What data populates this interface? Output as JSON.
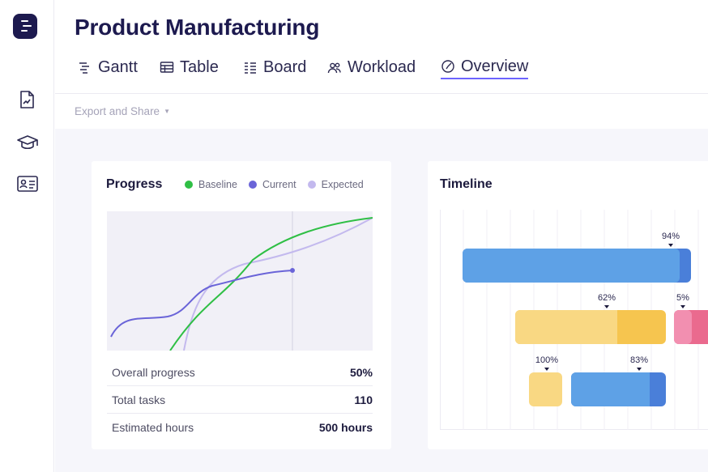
{
  "app": {
    "title": "Product Manufacturing",
    "tabs": [
      {
        "label": "Gantt",
        "icon": "gantt-icon"
      },
      {
        "label": "Table",
        "icon": "table-icon"
      },
      {
        "label": "Board",
        "icon": "board-icon"
      },
      {
        "label": "Workload",
        "icon": "workload-icon"
      },
      {
        "label": "Overview",
        "icon": "overview-icon",
        "active": true
      }
    ]
  },
  "sidebar": {
    "icons": [
      "document-icon",
      "graduation-cap-icon",
      "contact-card-icon"
    ]
  },
  "toolbar": {
    "export_label": "Export and Share"
  },
  "progress_card": {
    "title": "Progress",
    "legend": [
      {
        "label": "Baseline",
        "color": "#2fbf45"
      },
      {
        "label": "Current",
        "color": "#6a64d8"
      },
      {
        "label": "Expected",
        "color": "#c3b9ee"
      }
    ],
    "stats": [
      {
        "label": "Overall progress",
        "value": "50%"
      },
      {
        "label": "Total tasks",
        "value": "110"
      },
      {
        "label": "Estimated hours",
        "value": "500 hours"
      }
    ]
  },
  "timeline_card": {
    "title": "Timeline",
    "bars": [
      {
        "label": "94%",
        "color": "#5ea1e6",
        "progress": 0.94
      },
      {
        "label": "62%",
        "color": "#f9d883",
        "progress": 0.62
      },
      {
        "label": "5%",
        "color": "#f17fa3",
        "progress": 0.05
      },
      {
        "label": "100%",
        "color": "#f9d883",
        "progress": 1.0
      },
      {
        "label": "83%",
        "color": "#5ea1e6",
        "progress": 0.83
      }
    ]
  },
  "colors": {
    "accent": "#6c63ff",
    "brand": "#1d1a4f"
  }
}
